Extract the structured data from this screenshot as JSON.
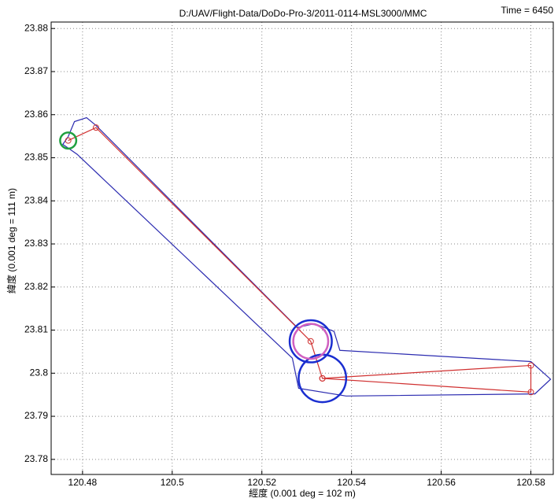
{
  "chart_data": {
    "type": "line",
    "title": "D:/UAV/Flight-Data/DoDo-Pro-3/2011-0114-MSL3000/MMC",
    "annotation": "Time = 6450",
    "x_label": "經度 (0.001 deg = 102 m)",
    "y_label": "緯度 (0.001 deg = 111 m)",
    "xlim": [
      120.473,
      120.585
    ],
    "ylim": [
      23.7765,
      23.8815
    ],
    "xticks": [
      120.48,
      120.5,
      120.52,
      120.54,
      120.56,
      120.58
    ],
    "yticks": [
      23.78,
      23.79,
      23.8,
      23.81,
      23.82,
      23.83,
      23.84,
      23.85,
      23.86,
      23.87,
      23.88
    ],
    "grid": true,
    "series": [
      {
        "color": "#2b2bb0",
        "x": [
          120.4768,
          120.4782,
          120.4809,
          120.483,
          120.5279,
          120.5318,
          120.5361,
          120.5374,
          120.58,
          120.5844,
          120.5809,
          120.5388,
          120.5282,
          120.5268,
          120.4788,
          120.4756,
          120.4768
        ],
        "values": [
          23.8549,
          23.8584,
          23.8593,
          23.8575,
          23.8106,
          23.8115,
          23.8097,
          23.8053,
          23.8027,
          23.7986,
          23.7952,
          23.7947,
          23.7965,
          23.8035,
          23.8508,
          23.8531,
          23.8549
        ]
      },
      {
        "color": "#d03030",
        "x": [
          120.4768,
          120.483,
          120.5309,
          120.5335,
          120.58,
          120.58,
          120.5335
        ],
        "values": [
          23.854,
          23.857,
          23.8074,
          23.7988,
          23.8018,
          23.7956,
          23.7988
        ]
      }
    ],
    "circles": [
      {
        "color": "#1a2ed0",
        "x": 120.5309,
        "y": 23.8074,
        "r": 0.0047
      },
      {
        "color": "#1a2ed0",
        "x": 120.5335,
        "y": 23.7988,
        "r": 0.0053
      },
      {
        "color": "#20a040",
        "x": 120.4768,
        "y": 23.854,
        "r": 0.0018
      },
      {
        "color": "#d060c0",
        "x": 120.5309,
        "y": 23.8074,
        "r": 0.0039
      }
    ]
  }
}
